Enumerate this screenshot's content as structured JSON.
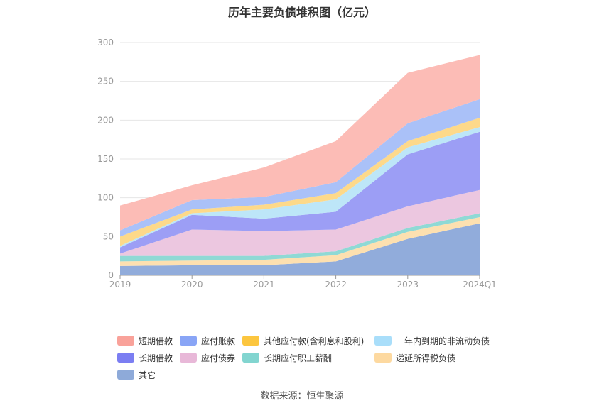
{
  "title": "历年主要负债堆积图（亿元）",
  "source": "数据来源：恒生聚源",
  "chart_data": {
    "type": "area",
    "stacked": true,
    "title": "历年主要负债堆积图（亿元）",
    "categories": [
      "2019",
      "2020",
      "2021",
      "2022",
      "2023",
      "2024Q1"
    ],
    "yticks": [
      "0",
      "50",
      "100",
      "150",
      "200",
      "250",
      "300"
    ],
    "ylim": [
      0,
      300
    ],
    "grid": true,
    "legend_position": "bottom",
    "series": [
      {
        "name": "其它",
        "color": "#91acdb",
        "values": [
          12,
          13,
          13,
          18,
          47,
          67
        ]
      },
      {
        "name": "递延所得税负债",
        "color": "#fde0b0",
        "values": [
          6,
          6,
          7,
          8,
          9,
          8
        ]
      },
      {
        "name": "长期应付职工薪酬",
        "color": "#8fd9d5",
        "values": [
          7,
          6,
          5,
          5,
          5,
          5
        ]
      },
      {
        "name": "应付债券",
        "color": "#ecc7e0",
        "values": [
          3,
          34,
          32,
          28,
          28,
          30
        ]
      },
      {
        "name": "长期借款",
        "color": "#9c9ef5",
        "values": [
          8,
          19,
          16,
          23,
          67,
          75
        ]
      },
      {
        "name": "一年内到期的非流动负债",
        "color": "#bde6f8",
        "values": [
          2,
          2,
          12,
          16,
          9,
          6
        ]
      },
      {
        "name": "其他应付款(含利息和股利)",
        "color": "#fdd98a",
        "values": [
          12,
          5,
          6,
          8,
          8,
          12
        ]
      },
      {
        "name": "应付账款",
        "color": "#aac1f8",
        "values": [
          8,
          12,
          10,
          14,
          23,
          24
        ]
      },
      {
        "name": "短期借款",
        "color": "#fcbcb6",
        "values": [
          32,
          19,
          38,
          53,
          65,
          57
        ]
      }
    ]
  },
  "legend": [
    {
      "label": "短期借款",
      "color": "#f9a29a"
    },
    {
      "label": "应付账款",
      "color": "#89a5f6"
    },
    {
      "label": "其他应付款(含利息和股利)",
      "color": "#fcc63f"
    },
    {
      "label": "一年内到期的非流动负债",
      "color": "#a9defa"
    },
    {
      "label": "长期借款",
      "color": "#7b7ef2"
    },
    {
      "label": "应付债券",
      "color": "#e8b8d8"
    },
    {
      "label": "长期应付职工薪酬",
      "color": "#82d5d0"
    },
    {
      "label": "递延所得税负债",
      "color": "#fdd9a0"
    },
    {
      "label": "其它",
      "color": "#8eaad9"
    }
  ]
}
